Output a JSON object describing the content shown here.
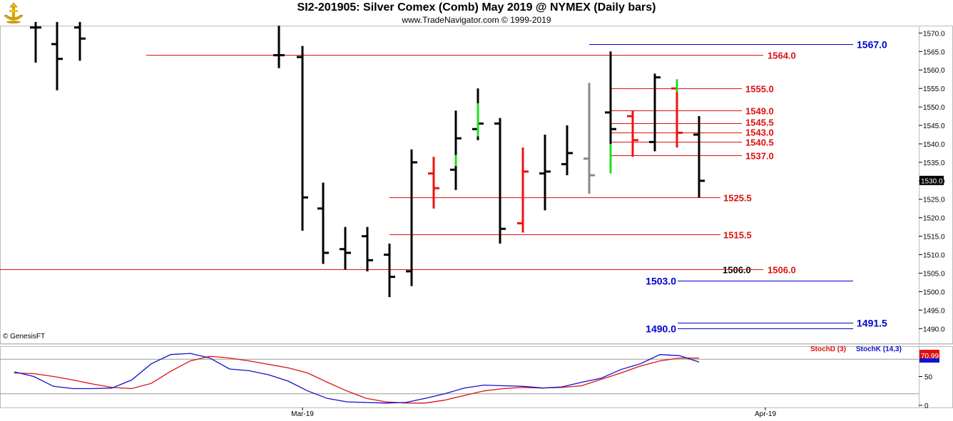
{
  "header": {
    "title": "SI2-201905:  Silver Comex (Comb) May 2019 @ NYMEX  (Daily bars)",
    "subtitle": "www.TradeNavigator.com © 1999-2019"
  },
  "footer": {
    "copyright": "© GenesisFT"
  },
  "colors": {
    "up_bar": "#22dd22",
    "down_bar": "#ee1111",
    "neutral_bar": "#000000",
    "inside_bar": "#888888",
    "blue_level": "#0000cc",
    "red_level": "#dd1111",
    "stoch_d": "#dd1111",
    "stoch_k": "#1111cc"
  },
  "chart_data": [
    {
      "type": "ohlc",
      "ylim": [
        1486,
        1572
      ],
      "price_ticks": [
        1570.0,
        1565.0,
        1560.0,
        1555.0,
        1550.0,
        1545.0,
        1540.0,
        1535.0,
        1530.0,
        1525.0,
        1520.0,
        1515.0,
        1510.0,
        1505.0,
        1500.0,
        1495.0,
        1490.0
      ],
      "last_price": "1530.0",
      "bars": [
        {
          "o": 1571.5,
          "h": 1573,
          "l": 1562,
          "c": 1571.5,
          "color": "black"
        },
        {
          "o": 1567,
          "h": 1573,
          "l": 1554.5,
          "c": 1563,
          "color": "black"
        },
        {
          "o": 1571.5,
          "h": 1573,
          "l": 1562.5,
          "c": 1568.5,
          "color": "black"
        },
        {
          "o": 1564,
          "h": 1572,
          "l": 1560.5,
          "c": 1564,
          "color": "black"
        },
        {
          "o": 1563.5,
          "h": 1566.5,
          "l": 1516.5,
          "c": 1525.5,
          "color": "black"
        },
        {
          "o": 1522.5,
          "h": 1529.5,
          "l": 1507.5,
          "c": 1510.5,
          "color": "black"
        },
        {
          "o": 1511.5,
          "h": 1517.5,
          "l": 1506,
          "c": 1510.5,
          "color": "black"
        },
        {
          "o": 1515,
          "h": 1517.5,
          "l": 1505.5,
          "c": 1508.5,
          "color": "black"
        },
        {
          "o": 1510,
          "h": 1513,
          "l": 1498.5,
          "c": 1504,
          "color": "black"
        },
        {
          "o": 1505.5,
          "h": 1538.5,
          "l": 1501.5,
          "c": 1535,
          "color": "black"
        },
        {
          "o": 1532,
          "h": 1536.5,
          "l": 1522.5,
          "c": 1528,
          "color": "red"
        },
        {
          "o": 1533,
          "h": 1549,
          "l": 1527.5,
          "c": 1541.5,
          "color": "black"
        },
        {
          "o": 1544,
          "h": 1555,
          "l": 1541,
          "c": 1545.5,
          "color": "black"
        },
        {
          "o": 1545.5,
          "h": 1547,
          "l": 1513,
          "c": 1517,
          "color": "black"
        },
        {
          "o": 1518.5,
          "h": 1539,
          "l": 1516,
          "c": 1532.5,
          "color": "red"
        },
        {
          "o": 1532,
          "h": 1542.5,
          "l": 1522,
          "c": 1532.5,
          "color": "black"
        },
        {
          "o": 1534.5,
          "h": 1545,
          "l": 1531.5,
          "c": 1537.5,
          "color": "black"
        },
        {
          "o": 1536,
          "h": 1556.5,
          "l": 1526.5,
          "c": 1531.5,
          "color": "gray"
        },
        {
          "o": 1548.5,
          "h": 1565,
          "l": 1532,
          "c": 1544,
          "color": "black"
        },
        {
          "o": 1547.5,
          "h": 1549,
          "l": 1536.5,
          "c": 1541,
          "color": "red"
        },
        {
          "o": 1540.5,
          "h": 1559,
          "l": 1538,
          "c": 1558,
          "color": "black"
        },
        {
          "o": 1555,
          "h": 1557,
          "l": 1539,
          "c": 1543,
          "color": "red"
        },
        {
          "o": 1542.5,
          "h": 1547.5,
          "l": 1525.5,
          "c": 1530,
          "color": "black"
        }
      ],
      "levels": [
        {
          "value": 1567.0,
          "label": "1567.0",
          "color": "blue"
        },
        {
          "value": 1564.0,
          "label": "1564.0",
          "color": "red"
        },
        {
          "value": 1555.0,
          "label": "1555.0",
          "color": "red"
        },
        {
          "value": 1549.0,
          "label": "1549.0",
          "color": "red"
        },
        {
          "value": 1545.5,
          "label": "1545.5",
          "color": "red"
        },
        {
          "value": 1543.0,
          "label": "1543.0",
          "color": "red"
        },
        {
          "value": 1540.5,
          "label": "1540.5",
          "color": "red"
        },
        {
          "value": 1537.0,
          "label": "1537.0",
          "color": "red"
        },
        {
          "value": 1525.5,
          "label": "1525.5",
          "color": "red"
        },
        {
          "value": 1515.5,
          "label": "1515.5",
          "color": "red"
        },
        {
          "value": 1506.0,
          "label": "1506.0",
          "color": "black"
        },
        {
          "value": 1506.0,
          "label": "1506.0",
          "color": "red"
        },
        {
          "value": 1503.0,
          "label": "1503.0",
          "color": "blue"
        },
        {
          "value": 1491.5,
          "label": "1491.5",
          "color": "blue"
        },
        {
          "value": 1490.0,
          "label": "1490.0",
          "color": "blue"
        }
      ]
    },
    {
      "type": "line",
      "ylim": [
        0,
        100
      ],
      "y_ticks": [
        0,
        50
      ],
      "x_labels": [
        "Mar-19",
        "Apr-19"
      ],
      "series": [
        {
          "name": "StochD (3)",
          "color": "red",
          "values": [
            56,
            55,
            50,
            44,
            37,
            31,
            29,
            38,
            59,
            77,
            85,
            82,
            77,
            71,
            65,
            56,
            40,
            25,
            12,
            6,
            4,
            4,
            9,
            17,
            25,
            29,
            31,
            30,
            31,
            34,
            45,
            56,
            68,
            77,
            82,
            82
          ]
        },
        {
          "name": "StochK (14,3)",
          "color": "blue",
          "values": [
            58,
            50,
            33,
            29,
            29,
            30,
            44,
            72,
            88,
            90,
            82,
            63,
            60,
            53,
            42,
            25,
            12,
            6,
            5,
            4,
            5,
            12,
            20,
            30,
            35,
            34,
            33,
            30,
            32,
            40,
            47,
            62,
            72,
            88,
            86,
            75
          ]
        },
        {
          "name": "",
          "values": []
        }
      ],
      "last_value": "70.99"
    }
  ]
}
